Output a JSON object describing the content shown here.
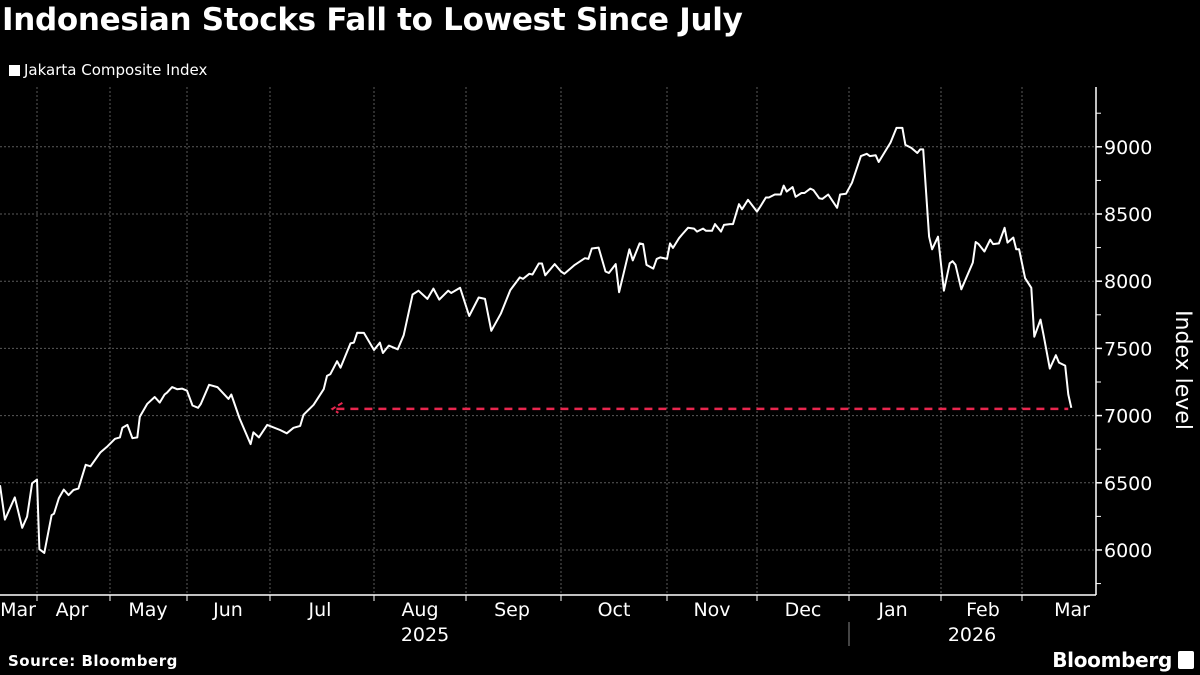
{
  "header": {
    "title": "Indonesian Stocks Fall to Lowest Since July"
  },
  "footer": {
    "source": "Source: Bloomberg",
    "brand": "Bloomberg"
  },
  "colors": {
    "background": "#000000",
    "line": "#ffffff",
    "reference": "#e8264e",
    "grid": "#5a5a5a"
  },
  "chart_data": {
    "type": "line",
    "title": "Indonesian Stocks Fall to Lowest Since July",
    "ylabel": "Index level",
    "xlabel": "",
    "ylim": [
      5665,
      9445
    ],
    "xlim": [
      "2025-03-17",
      "2026-03-25"
    ],
    "yticks": [
      6000,
      6500,
      7000,
      7500,
      8000,
      8500,
      9000
    ],
    "ytick_labels": [
      "6000",
      "6500",
      "7000",
      "7500",
      "8000",
      "8500",
      "9000"
    ],
    "xtick_labels": [
      "Mar",
      "Apr",
      "May",
      "Jun",
      "Jul",
      "Aug",
      "Sep",
      "Oct",
      "Nov",
      "Dec",
      "Jan",
      "Feb",
      "Mar"
    ],
    "year_labels": [
      "2025",
      "2026"
    ],
    "grid": true,
    "legend_position": "top-left",
    "series": [
      {
        "name": "Jakarta Composite Index",
        "points": [
          [
            "2025-03-17",
            6482
          ],
          [
            "2025-03-19",
            6226
          ],
          [
            "2025-03-23",
            6391
          ],
          [
            "2025-03-26",
            6165
          ],
          [
            "2025-03-28",
            6248
          ],
          [
            "2025-03-30",
            6496
          ],
          [
            "2025-04-01",
            6524
          ],
          [
            "2025-04-02",
            6006
          ],
          [
            "2025-04-04",
            5978
          ],
          [
            "2025-04-07",
            6259
          ],
          [
            "2025-04-08",
            6270
          ],
          [
            "2025-04-10",
            6386
          ],
          [
            "2025-04-12",
            6449
          ],
          [
            "2025-04-14",
            6408
          ],
          [
            "2025-04-16",
            6446
          ],
          [
            "2025-04-18",
            6457
          ],
          [
            "2025-04-21",
            6634
          ],
          [
            "2025-04-23",
            6623
          ],
          [
            "2025-04-27",
            6725
          ],
          [
            "2025-04-30",
            6772
          ],
          [
            "2025-05-03",
            6827
          ],
          [
            "2025-05-05",
            6838
          ],
          [
            "2025-05-06",
            6909
          ],
          [
            "2025-05-08",
            6931
          ],
          [
            "2025-05-10",
            6832
          ],
          [
            "2025-05-12",
            6838
          ],
          [
            "2025-05-13",
            6992
          ],
          [
            "2025-05-16",
            7088
          ],
          [
            "2025-05-19",
            7138
          ],
          [
            "2025-05-21",
            7097
          ],
          [
            "2025-05-23",
            7157
          ],
          [
            "2025-05-24",
            7171
          ],
          [
            "2025-05-26",
            7212
          ],
          [
            "2025-05-28",
            7196
          ],
          [
            "2025-05-30",
            7201
          ],
          [
            "2025-06-01",
            7185
          ],
          [
            "2025-06-03",
            7075
          ],
          [
            "2025-06-05",
            7058
          ],
          [
            "2025-06-06",
            7086
          ],
          [
            "2025-06-09",
            7229
          ],
          [
            "2025-06-12",
            7212
          ],
          [
            "2025-06-16",
            7124
          ],
          [
            "2025-06-17",
            7157
          ],
          [
            "2025-06-20",
            6978
          ],
          [
            "2025-06-24",
            6788
          ],
          [
            "2025-06-25",
            6876
          ],
          [
            "2025-06-27",
            6838
          ],
          [
            "2025-06-30",
            6931
          ],
          [
            "2025-07-04",
            6893
          ],
          [
            "2025-07-06",
            6868
          ],
          [
            "2025-07-08",
            6909
          ],
          [
            "2025-07-10",
            6923
          ],
          [
            "2025-07-11",
            7006
          ],
          [
            "2025-07-14",
            7080
          ],
          [
            "2025-07-17",
            7196
          ],
          [
            "2025-07-18",
            7295
          ],
          [
            "2025-07-19",
            7309
          ],
          [
            "2025-07-21",
            7405
          ],
          [
            "2025-07-22",
            7356
          ],
          [
            "2025-07-25",
            7537
          ],
          [
            "2025-07-26",
            7543
          ],
          [
            "2025-07-27",
            7617
          ],
          [
            "2025-07-29",
            7615
          ],
          [
            "2025-08-01",
            7488
          ],
          [
            "2025-08-03",
            7543
          ],
          [
            "2025-08-04",
            7466
          ],
          [
            "2025-08-06",
            7521
          ],
          [
            "2025-08-09",
            7493
          ],
          [
            "2025-08-11",
            7598
          ],
          [
            "2025-08-14",
            7901
          ],
          [
            "2025-08-16",
            7929
          ],
          [
            "2025-08-19",
            7868
          ],
          [
            "2025-08-21",
            7945
          ],
          [
            "2025-08-23",
            7863
          ],
          [
            "2025-08-26",
            7929
          ],
          [
            "2025-08-27",
            7912
          ],
          [
            "2025-08-30",
            7951
          ],
          [
            "2025-09-02",
            7741
          ],
          [
            "2025-09-05",
            7879
          ],
          [
            "2025-09-07",
            7868
          ],
          [
            "2025-09-09",
            7631
          ],
          [
            "2025-09-12",
            7758
          ],
          [
            "2025-09-15",
            7934
          ],
          [
            "2025-09-18",
            8028
          ],
          [
            "2025-09-19",
            8017
          ],
          [
            "2025-09-21",
            8055
          ],
          [
            "2025-09-22",
            8050
          ],
          [
            "2025-09-24",
            8132
          ],
          [
            "2025-09-25",
            8132
          ],
          [
            "2025-09-26",
            8044
          ],
          [
            "2025-09-29",
            8127
          ],
          [
            "2025-10-01",
            8072
          ],
          [
            "2025-10-02",
            8055
          ],
          [
            "2025-10-05",
            8121
          ],
          [
            "2025-10-08",
            8171
          ],
          [
            "2025-10-09",
            8166
          ],
          [
            "2025-10-10",
            8243
          ],
          [
            "2025-10-12",
            8250
          ],
          [
            "2025-10-14",
            8072
          ],
          [
            "2025-10-15",
            8061
          ],
          [
            "2025-10-17",
            8127
          ],
          [
            "2025-10-18",
            7918
          ],
          [
            "2025-10-21",
            8237
          ],
          [
            "2025-10-22",
            8155
          ],
          [
            "2025-10-24",
            8281
          ],
          [
            "2025-10-25",
            8276
          ],
          [
            "2025-10-26",
            8121
          ],
          [
            "2025-10-28",
            8094
          ],
          [
            "2025-10-29",
            8166
          ],
          [
            "2025-10-30",
            8177
          ],
          [
            "2025-11-01",
            8166
          ],
          [
            "2025-11-02",
            8281
          ],
          [
            "2025-11-03",
            8248
          ],
          [
            "2025-11-05",
            8320
          ],
          [
            "2025-11-06",
            8347
          ],
          [
            "2025-11-08",
            8397
          ],
          [
            "2025-11-10",
            8391
          ],
          [
            "2025-11-11",
            8369
          ],
          [
            "2025-11-13",
            8391
          ],
          [
            "2025-11-14",
            8375
          ],
          [
            "2025-11-16",
            8375
          ],
          [
            "2025-11-17",
            8425
          ],
          [
            "2025-11-19",
            8369
          ],
          [
            "2025-11-20",
            8419
          ],
          [
            "2025-11-22",
            8425
          ],
          [
            "2025-11-23",
            8425
          ],
          [
            "2025-11-25",
            8573
          ],
          [
            "2025-11-26",
            8535
          ],
          [
            "2025-11-28",
            8606
          ],
          [
            "2025-12-01",
            8518
          ],
          [
            "2025-12-02",
            8551
          ],
          [
            "2025-12-04",
            8623
          ],
          [
            "2025-12-05",
            8623
          ],
          [
            "2025-12-07",
            8645
          ],
          [
            "2025-12-09",
            8645
          ],
          [
            "2025-12-10",
            8711
          ],
          [
            "2025-12-11",
            8667
          ],
          [
            "2025-12-13",
            8700
          ],
          [
            "2025-12-14",
            8628
          ],
          [
            "2025-12-16",
            8656
          ],
          [
            "2025-12-17",
            8656
          ],
          [
            "2025-12-19",
            8689
          ],
          [
            "2025-12-20",
            8678
          ],
          [
            "2025-12-22",
            8617
          ],
          [
            "2025-12-23",
            8612
          ],
          [
            "2025-12-25",
            8645
          ],
          [
            "2025-12-28",
            8546
          ],
          [
            "2025-12-29",
            8645
          ],
          [
            "2025-12-31",
            8650
          ],
          [
            "2026-01-02",
            8733
          ],
          [
            "2026-01-05",
            8931
          ],
          [
            "2026-01-07",
            8948
          ],
          [
            "2026-01-08",
            8931
          ],
          [
            "2026-01-10",
            8937
          ],
          [
            "2026-01-11",
            8887
          ],
          [
            "2026-01-15",
            9031
          ],
          [
            "2026-01-17",
            9141
          ],
          [
            "2026-01-19",
            9141
          ],
          [
            "2026-01-20",
            9014
          ],
          [
            "2026-01-22",
            8992
          ],
          [
            "2026-01-24",
            8954
          ],
          [
            "2026-01-25",
            8981
          ],
          [
            "2026-01-26",
            8981
          ],
          [
            "2026-01-28",
            8331
          ],
          [
            "2026-01-29",
            8237
          ],
          [
            "2026-01-31",
            8331
          ],
          [
            "2026-02-02",
            7929
          ],
          [
            "2026-02-04",
            8133
          ],
          [
            "2026-02-05",
            8149
          ],
          [
            "2026-02-06",
            8122
          ],
          [
            "2026-02-08",
            7940
          ],
          [
            "2026-02-12",
            8138
          ],
          [
            "2026-02-13",
            8292
          ],
          [
            "2026-02-14",
            8276
          ],
          [
            "2026-02-16",
            8221
          ],
          [
            "2026-02-18",
            8309
          ],
          [
            "2026-02-19",
            8276
          ],
          [
            "2026-02-21",
            8281
          ],
          [
            "2026-02-23",
            8397
          ],
          [
            "2026-02-24",
            8287
          ],
          [
            "2026-02-26",
            8325
          ],
          [
            "2026-02-27",
            8237
          ],
          [
            "2026-02-28",
            8237
          ],
          [
            "2026-03-02",
            8022
          ],
          [
            "2026-03-04",
            7951
          ],
          [
            "2026-03-05",
            7587
          ],
          [
            "2026-03-07",
            7714
          ],
          [
            "2026-03-08",
            7598
          ],
          [
            "2026-03-10",
            7350
          ],
          [
            "2026-03-12",
            7449
          ],
          [
            "2026-03-13",
            7394
          ],
          [
            "2026-03-15",
            7372
          ],
          [
            "2026-03-16",
            7157
          ],
          [
            "2026-03-17",
            7058
          ]
        ]
      }
    ],
    "annotations": [
      {
        "type": "reference-line-arrow",
        "value": 7050,
        "from": "2026-03-16",
        "to": "2025-07-19",
        "style": "dashed",
        "color": "#e8264e"
      }
    ]
  }
}
